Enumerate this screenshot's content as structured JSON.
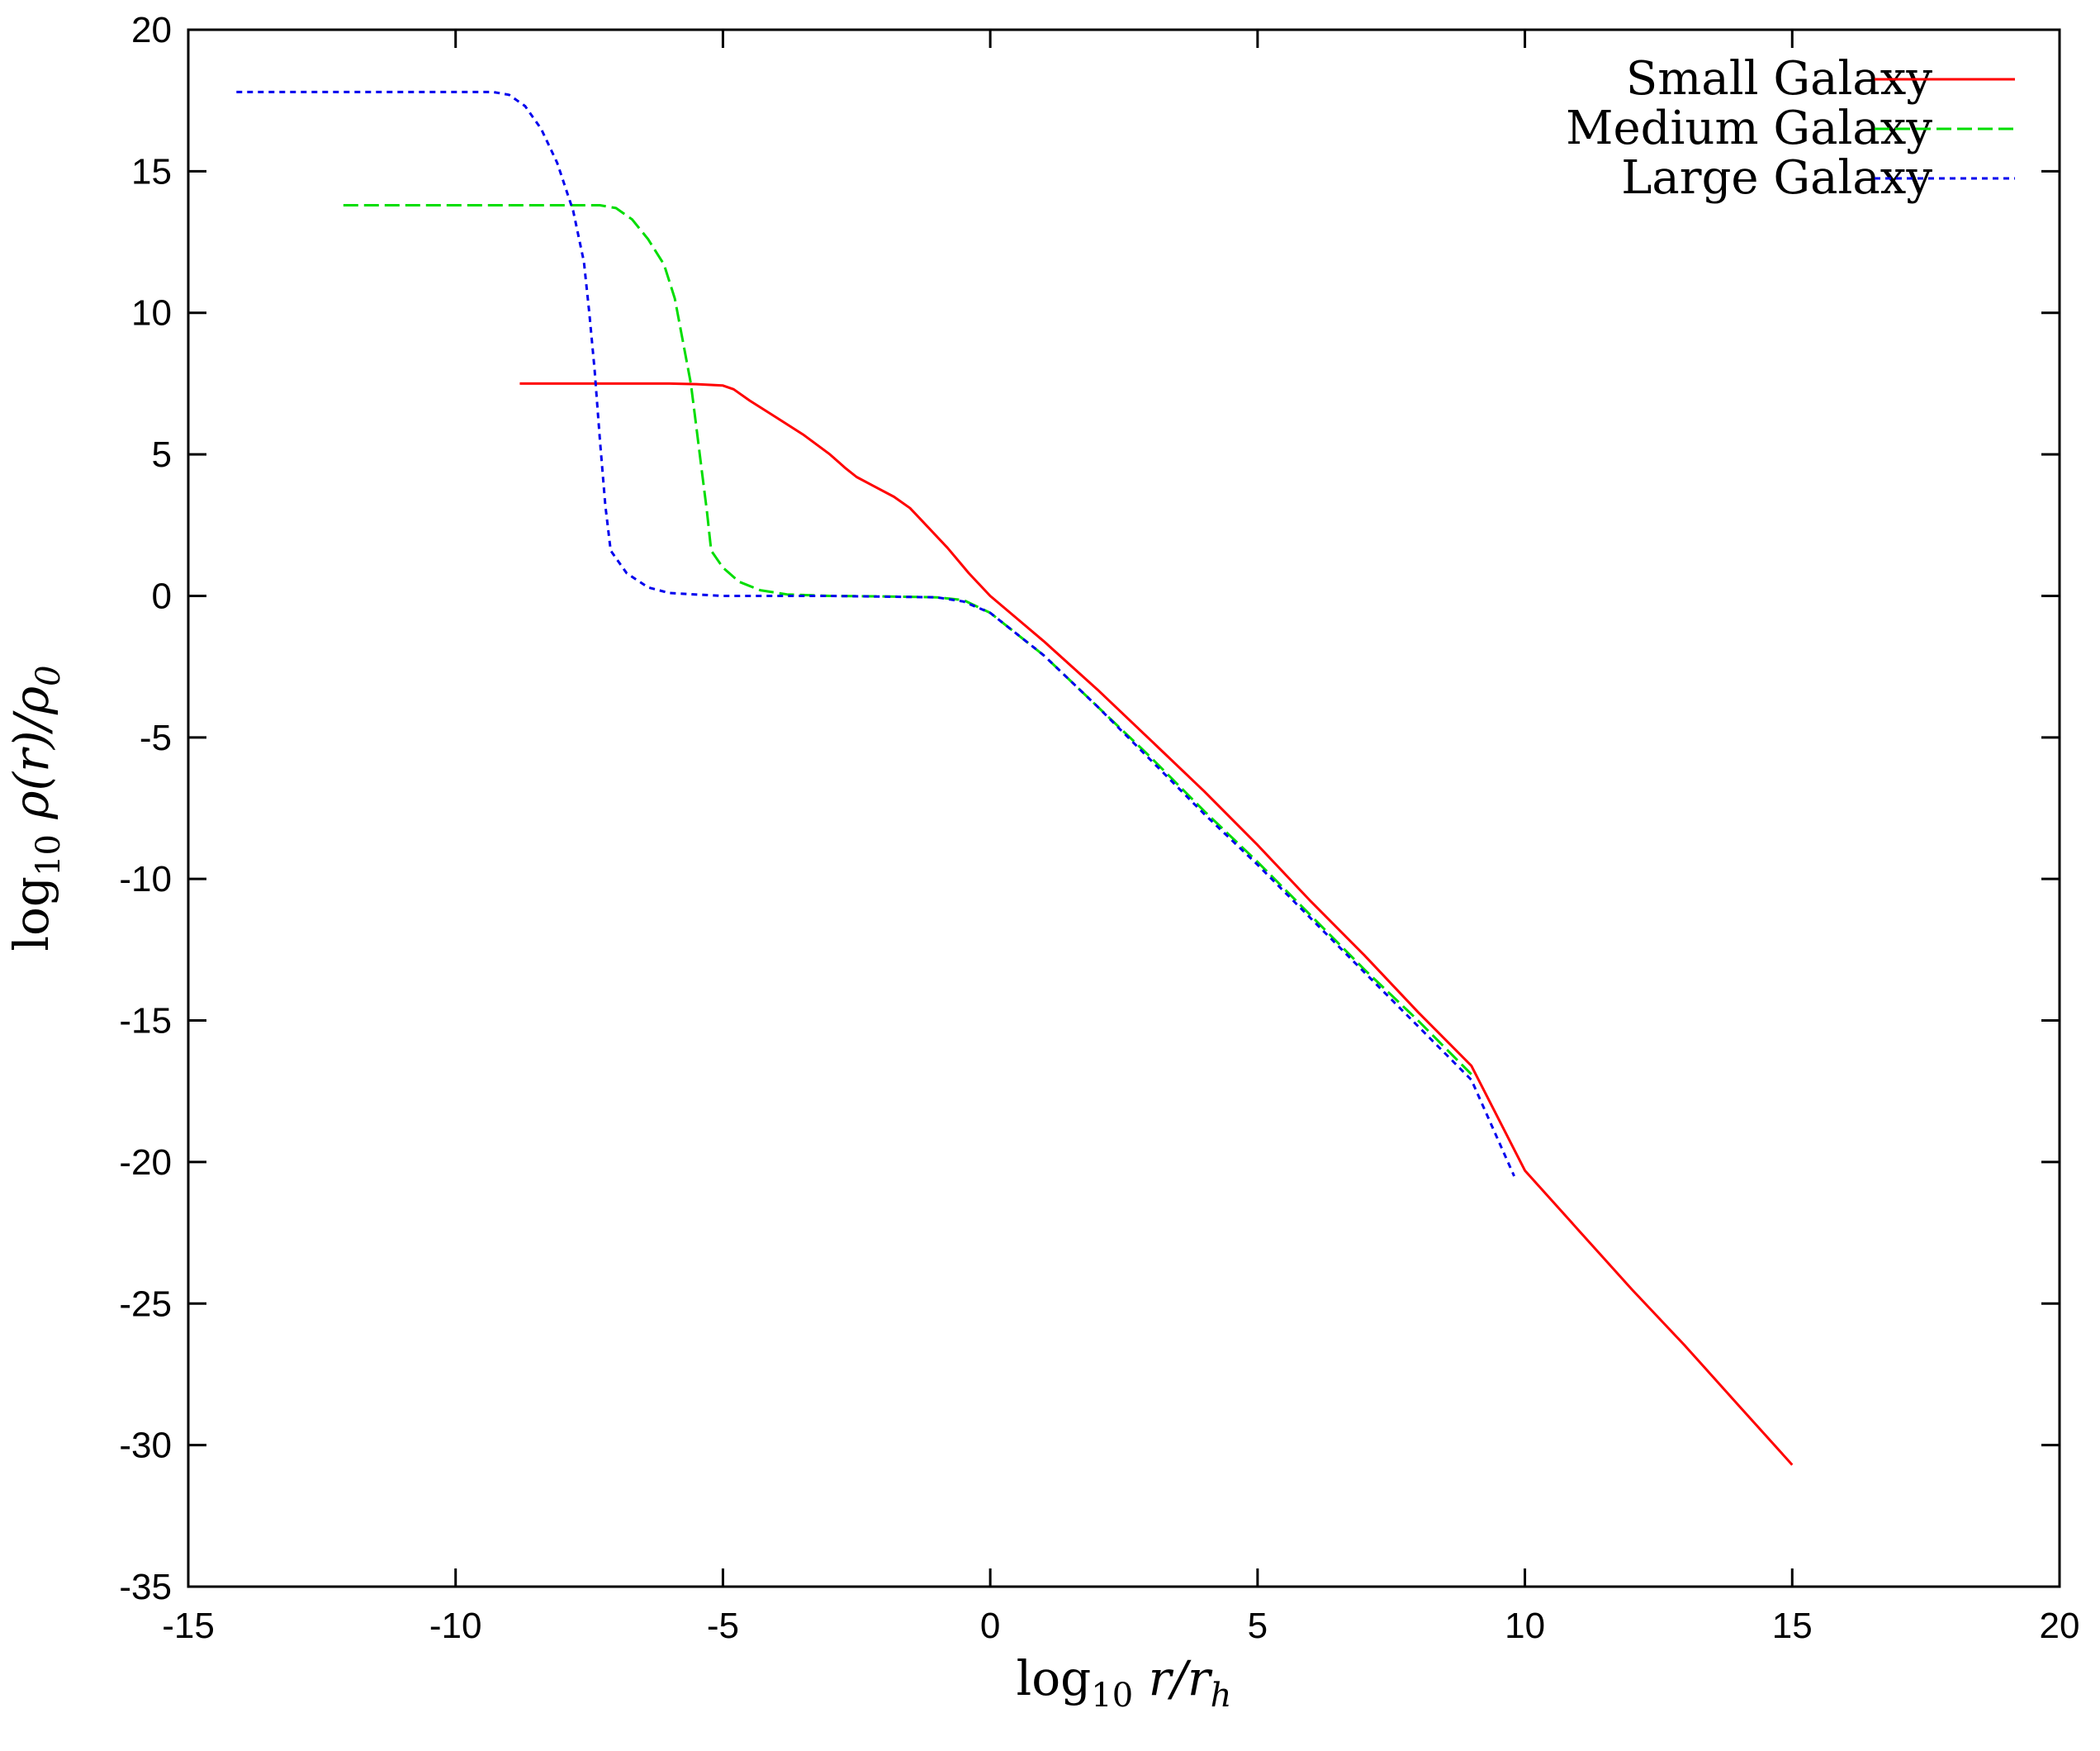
{
  "chart_data": {
    "type": "line",
    "xlabel": {
      "prefix": "log",
      "sub": "10",
      "main": " r/r",
      "main_sub": "h"
    },
    "ylabel": {
      "prefix": "log",
      "sub": "10",
      "main": " ρ(r)/ρ",
      "main_sub": "0"
    },
    "xlim": [
      -15,
      20
    ],
    "ylim": [
      -35,
      20
    ],
    "xticks": [
      -15,
      -10,
      -5,
      0,
      5,
      10,
      15,
      20
    ],
    "yticks": [
      -35,
      -30,
      -25,
      -20,
      -15,
      -10,
      -5,
      0,
      5,
      10,
      15,
      20
    ],
    "legend": "top-right",
    "series": [
      {
        "name": "Small Galaxy",
        "color": "#ff0000",
        "dash": "solid",
        "points": [
          [
            -8.8,
            7.5
          ],
          [
            -7,
            7.5
          ],
          [
            -6,
            7.5
          ],
          [
            -5.5,
            7.48
          ],
          [
            -5.0,
            7.43
          ],
          [
            -4.8,
            7.3
          ],
          [
            -4.5,
            6.9
          ],
          [
            -4.0,
            6.3
          ],
          [
            -3.5,
            5.7
          ],
          [
            -3.0,
            5.0
          ],
          [
            -2.7,
            4.5
          ],
          [
            -2.5,
            4.2
          ],
          [
            -2.2,
            3.9
          ],
          [
            -1.8,
            3.5
          ],
          [
            -1.5,
            3.1
          ],
          [
            -1.2,
            2.5
          ],
          [
            -0.8,
            1.7
          ],
          [
            -0.4,
            0.8
          ],
          [
            0,
            0
          ],
          [
            0.5,
            -0.8
          ],
          [
            1,
            -1.6
          ],
          [
            2,
            -3.3
          ],
          [
            3,
            -5.1
          ],
          [
            4,
            -6.9
          ],
          [
            5,
            -8.8
          ],
          [
            6,
            -10.8
          ],
          [
            7,
            -12.7
          ],
          [
            8,
            -14.7
          ],
          [
            9,
            -16.6
          ],
          [
            10,
            -20.3
          ],
          [
            11,
            -22.4
          ],
          [
            12,
            -24.5
          ],
          [
            13,
            -26.5
          ],
          [
            14,
            -28.6
          ],
          [
            15,
            -30.7
          ]
        ]
      },
      {
        "name": "Medium Galaxy",
        "color": "#00dd00",
        "dash": "long",
        "points": [
          [
            -12.1,
            13.8
          ],
          [
            -10,
            13.8
          ],
          [
            -8,
            13.8
          ],
          [
            -7.3,
            13.8
          ],
          [
            -7.0,
            13.7
          ],
          [
            -6.7,
            13.3
          ],
          [
            -6.4,
            12.6
          ],
          [
            -6.1,
            11.7
          ],
          [
            -5.9,
            10.5
          ],
          [
            -5.75,
            9.0
          ],
          [
            -5.6,
            7.5
          ],
          [
            -5.5,
            6.0
          ],
          [
            -5.4,
            4.5
          ],
          [
            -5.3,
            3.0
          ],
          [
            -5.22,
            1.6
          ],
          [
            -5.0,
            1.0
          ],
          [
            -4.7,
            0.5
          ],
          [
            -4.3,
            0.2
          ],
          [
            -3.8,
            0.05
          ],
          [
            -3,
            0
          ],
          [
            -2,
            -0.02
          ],
          [
            -1,
            -0.05
          ],
          [
            -0.5,
            -0.15
          ],
          [
            0,
            -0.6
          ],
          [
            1,
            -2.1
          ],
          [
            2,
            -3.9
          ],
          [
            3,
            -5.7
          ],
          [
            4,
            -7.6
          ],
          [
            5,
            -9.4
          ],
          [
            6,
            -11.3
          ],
          [
            7,
            -13.2
          ],
          [
            8,
            -15.0
          ],
          [
            9,
            -16.9
          ]
        ]
      },
      {
        "name": "Large Galaxy",
        "color": "#0000ee",
        "dash": "short",
        "points": [
          [
            -14.1,
            17.8
          ],
          [
            -12,
            17.8
          ],
          [
            -10,
            17.8
          ],
          [
            -9.3,
            17.8
          ],
          [
            -9.0,
            17.7
          ],
          [
            -8.7,
            17.3
          ],
          [
            -8.4,
            16.5
          ],
          [
            -8.1,
            15.3
          ],
          [
            -7.8,
            13.6
          ],
          [
            -7.6,
            11.8
          ],
          [
            -7.5,
            10.0
          ],
          [
            -7.4,
            8.0
          ],
          [
            -7.3,
            5.5
          ],
          [
            -7.2,
            3.2
          ],
          [
            -7.1,
            1.6
          ],
          [
            -6.8,
            0.8
          ],
          [
            -6.4,
            0.3
          ],
          [
            -6.0,
            0.1
          ],
          [
            -5,
            0
          ],
          [
            -3,
            0
          ],
          [
            -1,
            -0.05
          ],
          [
            -0.5,
            -0.2
          ],
          [
            0,
            -0.6
          ],
          [
            1,
            -2.1
          ],
          [
            2,
            -3.9
          ],
          [
            3,
            -5.8
          ],
          [
            4,
            -7.7
          ],
          [
            5,
            -9.5
          ],
          [
            6,
            -11.4
          ],
          [
            7,
            -13.3
          ],
          [
            8,
            -15.2
          ],
          [
            9,
            -17.1
          ],
          [
            9.8,
            -20.5
          ]
        ]
      }
    ]
  }
}
